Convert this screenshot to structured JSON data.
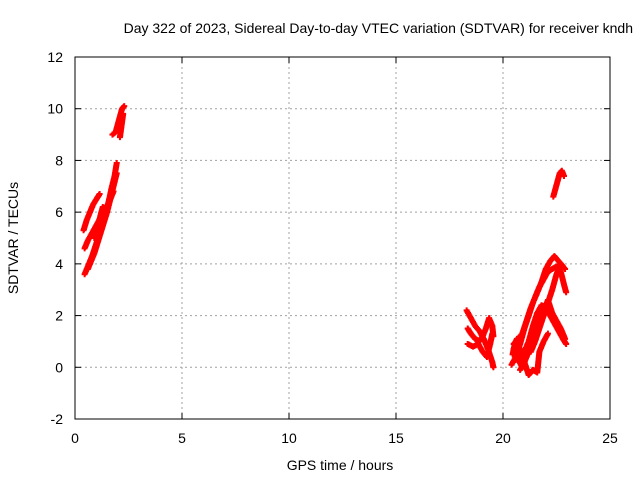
{
  "chart_data": {
    "type": "scatter",
    "title": "Day 322 of 2023, Sidereal Day-to-day VTEC variation (SDTVAR) for receiver kndh",
    "xlabel": "GPS time / hours",
    "ylabel": "SDTVAR / TECUs",
    "xlim": [
      0,
      25
    ],
    "ylim": [
      -2,
      12
    ],
    "xticks": [
      0,
      5,
      10,
      15,
      20,
      25
    ],
    "yticks": [
      -2,
      0,
      2,
      4,
      6,
      8,
      10,
      12
    ],
    "grid": true,
    "marker": "+",
    "color": "#ff0000",
    "series": [
      {
        "segments": [
          [
            [
              0.45,
              3.6
            ],
            [
              0.6,
              3.9
            ],
            [
              0.8,
              4.3
            ],
            [
              1.0,
              4.8
            ],
            [
              1.2,
              5.3
            ],
            [
              1.4,
              5.8
            ],
            [
              1.55,
              6.3
            ],
            [
              1.7,
              6.9
            ],
            [
              1.85,
              7.4
            ],
            [
              1.95,
              7.9
            ]
          ],
          [
            [
              0.4,
              5.3
            ],
            [
              0.55,
              5.7
            ],
            [
              0.7,
              6.0
            ],
            [
              0.85,
              6.3
            ],
            [
              1.0,
              6.5
            ],
            [
              1.15,
              6.7
            ]
          ],
          [
            [
              0.45,
              4.6
            ],
            [
              0.6,
              4.9
            ],
            [
              0.8,
              5.2
            ],
            [
              1.0,
              5.5
            ],
            [
              1.2,
              5.8
            ],
            [
              1.4,
              6.1
            ],
            [
              1.6,
              6.4
            ],
            [
              1.8,
              6.8
            ]
          ],
          [
            [
              0.6,
              3.8
            ],
            [
              0.75,
              4.1
            ],
            [
              0.9,
              4.4
            ],
            [
              1.05,
              4.8
            ],
            [
              1.2,
              5.2
            ],
            [
              1.35,
              5.6
            ],
            [
              1.5,
              6.0
            ],
            [
              1.65,
              6.5
            ],
            [
              1.8,
              7.0
            ],
            [
              1.95,
              7.5
            ]
          ],
          [
            [
              0.9,
              5.0
            ],
            [
              1.05,
              5.4
            ],
            [
              1.2,
              5.9
            ],
            [
              1.3,
              6.2
            ],
            [
              1.45,
              6.0
            ],
            [
              1.6,
              6.5
            ]
          ],
          [
            [
              1.75,
              9.0
            ],
            [
              1.9,
              9.1
            ],
            [
              2.0,
              9.4
            ],
            [
              2.1,
              9.7
            ],
            [
              2.2,
              10.0
            ],
            [
              2.3,
              10.1
            ]
          ],
          [
            [
              2.1,
              8.9
            ],
            [
              2.15,
              9.2
            ],
            [
              2.2,
              9.5
            ],
            [
              2.25,
              9.8
            ]
          ],
          [
            [
              22.35,
              6.6
            ],
            [
              22.45,
              6.9
            ],
            [
              22.55,
              7.2
            ],
            [
              22.65,
              7.5
            ],
            [
              22.75,
              7.6
            ],
            [
              22.85,
              7.4
            ]
          ],
          [
            [
              18.3,
              2.2
            ],
            [
              18.5,
              1.9
            ],
            [
              18.7,
              1.6
            ],
            [
              18.9,
              1.4
            ],
            [
              19.1,
              1.1
            ],
            [
              19.3,
              0.7
            ],
            [
              19.5,
              0.2
            ],
            [
              19.55,
              0.0
            ]
          ],
          [
            [
              18.35,
              1.5
            ],
            [
              18.5,
              1.3
            ],
            [
              18.7,
              1.1
            ],
            [
              18.9,
              1.0
            ],
            [
              19.05,
              1.2
            ],
            [
              19.2,
              1.5
            ],
            [
              19.35,
              1.9
            ],
            [
              19.5,
              1.6
            ],
            [
              19.55,
              1.2
            ]
          ],
          [
            [
              18.35,
              0.9
            ],
            [
              18.6,
              0.8
            ],
            [
              18.85,
              0.9
            ],
            [
              19.05,
              0.6
            ],
            [
              19.25,
              0.4
            ],
            [
              19.4,
              0.9
            ],
            [
              19.5,
              1.3
            ]
          ],
          [
            [
              20.4,
              0.1
            ],
            [
              20.6,
              0.4
            ],
            [
              20.8,
              0.9
            ],
            [
              21.0,
              1.5
            ],
            [
              21.2,
              2.0
            ],
            [
              21.4,
              2.5
            ],
            [
              21.6,
              2.9
            ],
            [
              21.8,
              3.3
            ],
            [
              22.0,
              3.8
            ],
            [
              22.2,
              4.1
            ],
            [
              22.4,
              4.3
            ],
            [
              22.6,
              4.1
            ],
            [
              22.8,
              3.9
            ]
          ],
          [
            [
              20.5,
              0.9
            ],
            [
              20.7,
              1.1
            ],
            [
              20.9,
              1.3
            ],
            [
              21.1,
              1.8
            ],
            [
              21.3,
              2.3
            ],
            [
              21.5,
              2.7
            ],
            [
              21.7,
              3.1
            ],
            [
              21.9,
              3.4
            ],
            [
              22.1,
              3.7
            ],
            [
              22.3,
              3.8
            ],
            [
              22.5,
              3.9
            ],
            [
              22.7,
              3.7
            ],
            [
              22.85,
              3.2
            ],
            [
              22.95,
              2.9
            ]
          ],
          [
            [
              20.6,
              0.3
            ],
            [
              20.8,
              0.4
            ],
            [
              21.0,
              0.6
            ],
            [
              21.2,
              1.0
            ],
            [
              21.4,
              1.6
            ],
            [
              21.6,
              2.1
            ],
            [
              21.8,
              2.4
            ],
            [
              22.0,
              2.3
            ],
            [
              22.2,
              2.0
            ],
            [
              22.4,
              1.7
            ],
            [
              22.6,
              1.4
            ],
            [
              22.8,
              1.1
            ],
            [
              22.95,
              0.9
            ]
          ],
          [
            [
              20.5,
              0.7
            ],
            [
              20.7,
              0.3
            ],
            [
              20.9,
              0.0
            ],
            [
              21.1,
              0.4
            ],
            [
              21.3,
              0.8
            ],
            [
              21.5,
              1.3
            ],
            [
              21.7,
              1.8
            ],
            [
              21.9,
              2.2
            ],
            [
              22.1,
              2.6
            ],
            [
              22.3,
              2.1
            ],
            [
              22.5,
              1.8
            ],
            [
              22.7,
              1.5
            ],
            [
              22.9,
              1.1
            ]
          ],
          [
            [
              20.8,
              -0.1
            ],
            [
              21.0,
              0.2
            ],
            [
              21.2,
              -0.3
            ],
            [
              21.4,
              -0.1
            ],
            [
              21.6,
              -0.2
            ],
            [
              21.7,
              0.6
            ],
            [
              21.9,
              1.0
            ],
            [
              22.1,
              1.3
            ]
          ],
          [
            [
              21.3,
              0.6
            ],
            [
              21.5,
              1.0
            ],
            [
              21.7,
              1.5
            ],
            [
              21.9,
              2.0
            ],
            [
              22.1,
              2.5
            ],
            [
              22.3,
              3.0
            ],
            [
              22.5,
              3.6
            ],
            [
              22.7,
              4.0
            ],
            [
              22.9,
              3.8
            ]
          ],
          [
            [
              20.45,
              0.5
            ],
            [
              20.55,
              0.9
            ],
            [
              20.65,
              1.1
            ],
            [
              20.75,
              0.8
            ],
            [
              20.85,
              0.5
            ],
            [
              20.95,
              0.2
            ]
          ]
        ]
      }
    ]
  }
}
